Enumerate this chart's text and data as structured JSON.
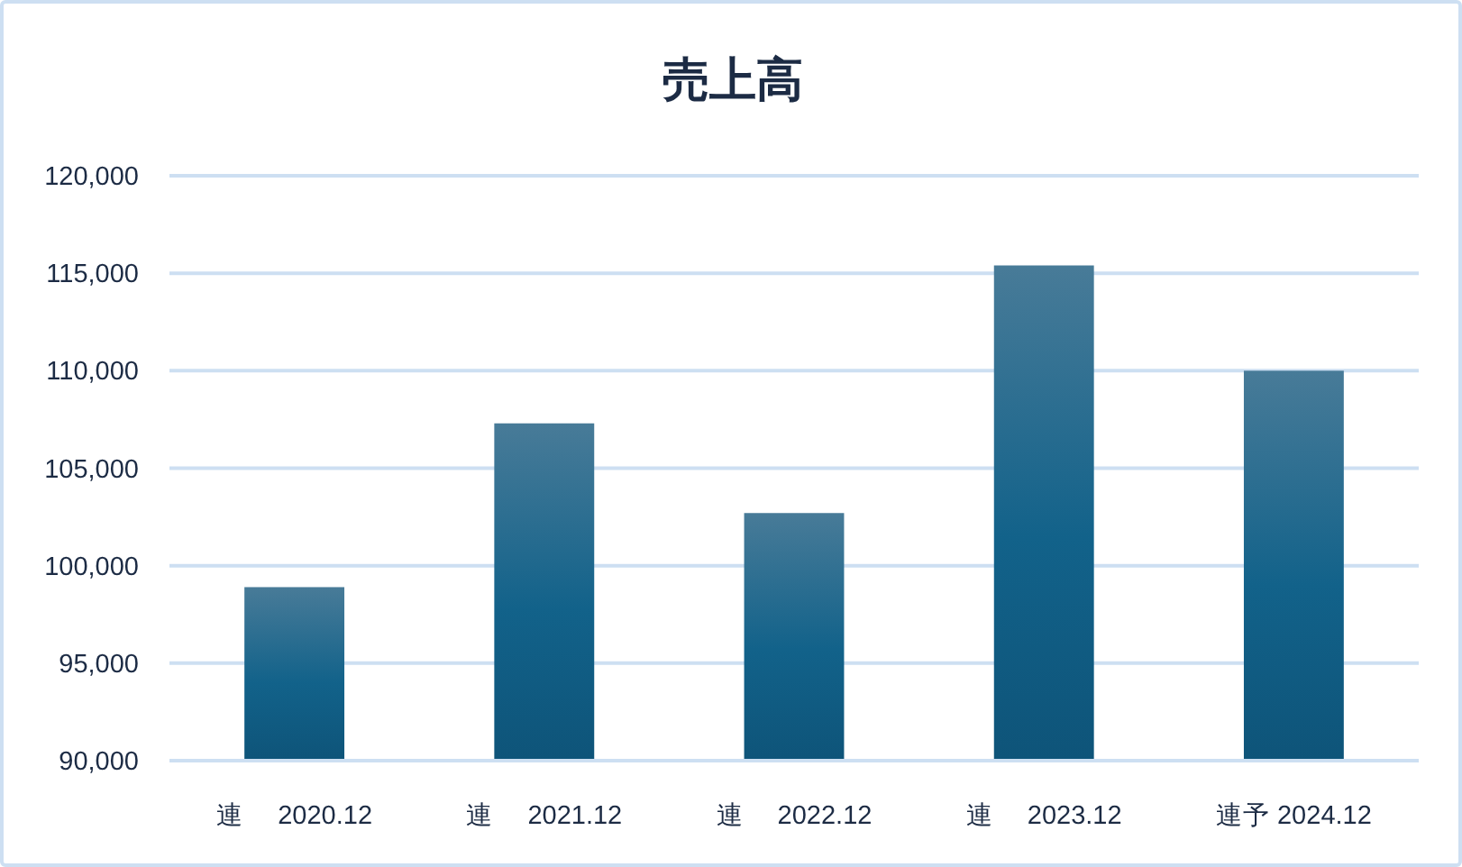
{
  "chart_data": {
    "type": "bar",
    "title": "売上高",
    "categories": [
      "連　 2020.12",
      "連　 2021.12",
      "連　 2022.12",
      "連　 2023.12",
      "連予 2024.12"
    ],
    "values": [
      98900,
      107300,
      102700,
      115400,
      110000
    ],
    "color": "#12628a",
    "ylim": [
      90000,
      120000
    ],
    "yticks": [
      {
        "value": 90000,
        "label": "90,000"
      },
      {
        "value": 95000,
        "label": "95,000"
      },
      {
        "value": 100000,
        "label": "100,000"
      },
      {
        "value": 105000,
        "label": "105,000"
      },
      {
        "value": 110000,
        "label": "110,000"
      },
      {
        "value": 115000,
        "label": "115,000"
      },
      {
        "value": 120000,
        "label": "120,000"
      }
    ],
    "grid": "y"
  }
}
